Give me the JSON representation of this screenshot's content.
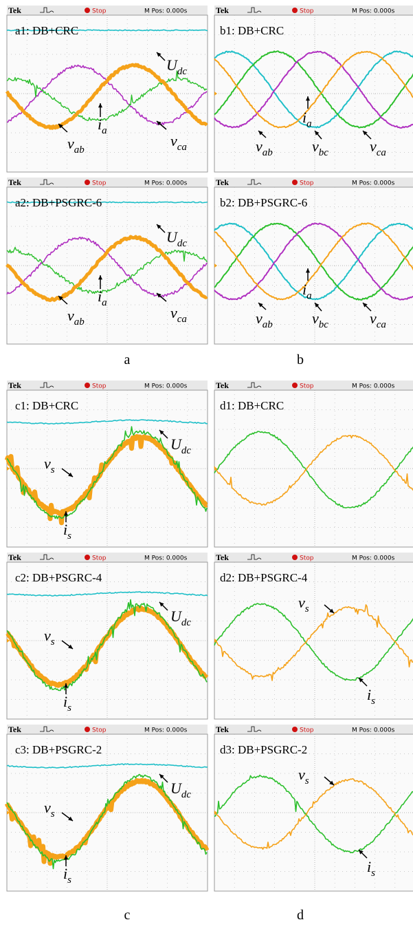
{
  "figure_labels": [
    "a",
    "b",
    "c",
    "d"
  ],
  "panels": [
    {
      "header": {
        "brand": "Tek",
        "status": "Stop",
        "position": "M Pos: 0.000s"
      },
      "title": "a1: DB+CRC",
      "labels": [
        {
          "symbol": "U",
          "subscript": "dc"
        },
        {
          "symbol": "i",
          "subscript": "a"
        },
        {
          "symbol": "v",
          "subscript": "ab"
        },
        {
          "symbol": "v",
          "subscript": "ca"
        }
      ]
    },
    {
      "header": {
        "brand": "Tek",
        "status": "Stop",
        "position": "M Pos: 0.000s"
      },
      "title": "b1: DB+CRC",
      "labels": [
        {
          "symbol": "i",
          "subscript": "a"
        },
        {
          "symbol": "v",
          "subscript": "ab"
        },
        {
          "symbol": "v",
          "subscript": "bc"
        },
        {
          "symbol": "v",
          "subscript": "ca"
        }
      ]
    },
    {
      "header": {
        "brand": "Tek",
        "status": "Stop",
        "position": "M Pos: 0.000s"
      },
      "title": "a2: DB+PSGRC-6",
      "labels": [
        {
          "symbol": "U",
          "subscript": "dc"
        },
        {
          "symbol": "i",
          "subscript": "a"
        },
        {
          "symbol": "v",
          "subscript": "ab"
        },
        {
          "symbol": "v",
          "subscript": "ca"
        }
      ]
    },
    {
      "header": {
        "brand": "Tek",
        "status": "Stop",
        "position": "M Pos: 0.000s"
      },
      "title": "b2: DB+PSGRC-6",
      "labels": [
        {
          "symbol": "i",
          "subscript": "a"
        },
        {
          "symbol": "v",
          "subscript": "ab"
        },
        {
          "symbol": "v",
          "subscript": "bc"
        },
        {
          "symbol": "v",
          "subscript": "ca"
        }
      ]
    },
    {
      "header": {
        "brand": "Tek",
        "status": "Stop",
        "position": "M Pos: 0.000s"
      },
      "title": "c1: DB+CRC",
      "labels": [
        {
          "symbol": "U",
          "subscript": "dc"
        },
        {
          "symbol": "v",
          "subscript": "s"
        },
        {
          "symbol": "i",
          "subscript": "s"
        }
      ]
    },
    {
      "header": {
        "brand": "Tek",
        "status": "Stop",
        "position": "M Pos: 0.000s"
      },
      "title": "d1: DB+CRC",
      "labels": []
    },
    {
      "header": {
        "brand": "Tek",
        "status": "Stop",
        "position": "M Pos: 0.000s"
      },
      "title": "c2: DB+PSGRC-4",
      "labels": [
        {
          "symbol": "U",
          "subscript": "dc"
        },
        {
          "symbol": "v",
          "subscript": "s"
        },
        {
          "symbol": "i",
          "subscript": "s"
        }
      ]
    },
    {
      "header": {
        "brand": "Tek",
        "status": "Stop",
        "position": "M Pos: 0.000s"
      },
      "title": "d2: DB+PSGRC-4",
      "labels": [
        {
          "symbol": "v",
          "subscript": "s"
        },
        {
          "symbol": "i",
          "subscript": "s"
        }
      ]
    },
    {
      "header": {
        "brand": "Tek",
        "status": "Stop",
        "position": "M Pos: 0.000s"
      },
      "title": "c3: DB+PSGRC-2",
      "labels": [
        {
          "symbol": "U",
          "subscript": "dc"
        },
        {
          "symbol": "v",
          "subscript": "s"
        },
        {
          "symbol": "i",
          "subscript": "s"
        }
      ]
    },
    {
      "header": {
        "brand": "Tek",
        "status": "Stop",
        "position": "M Pos: 0.000s"
      },
      "title": "d3: DB+PSGRC-2",
      "labels": [
        {
          "symbol": "v",
          "subscript": "s"
        },
        {
          "symbol": "i",
          "subscript": "s"
        }
      ]
    }
  ]
}
